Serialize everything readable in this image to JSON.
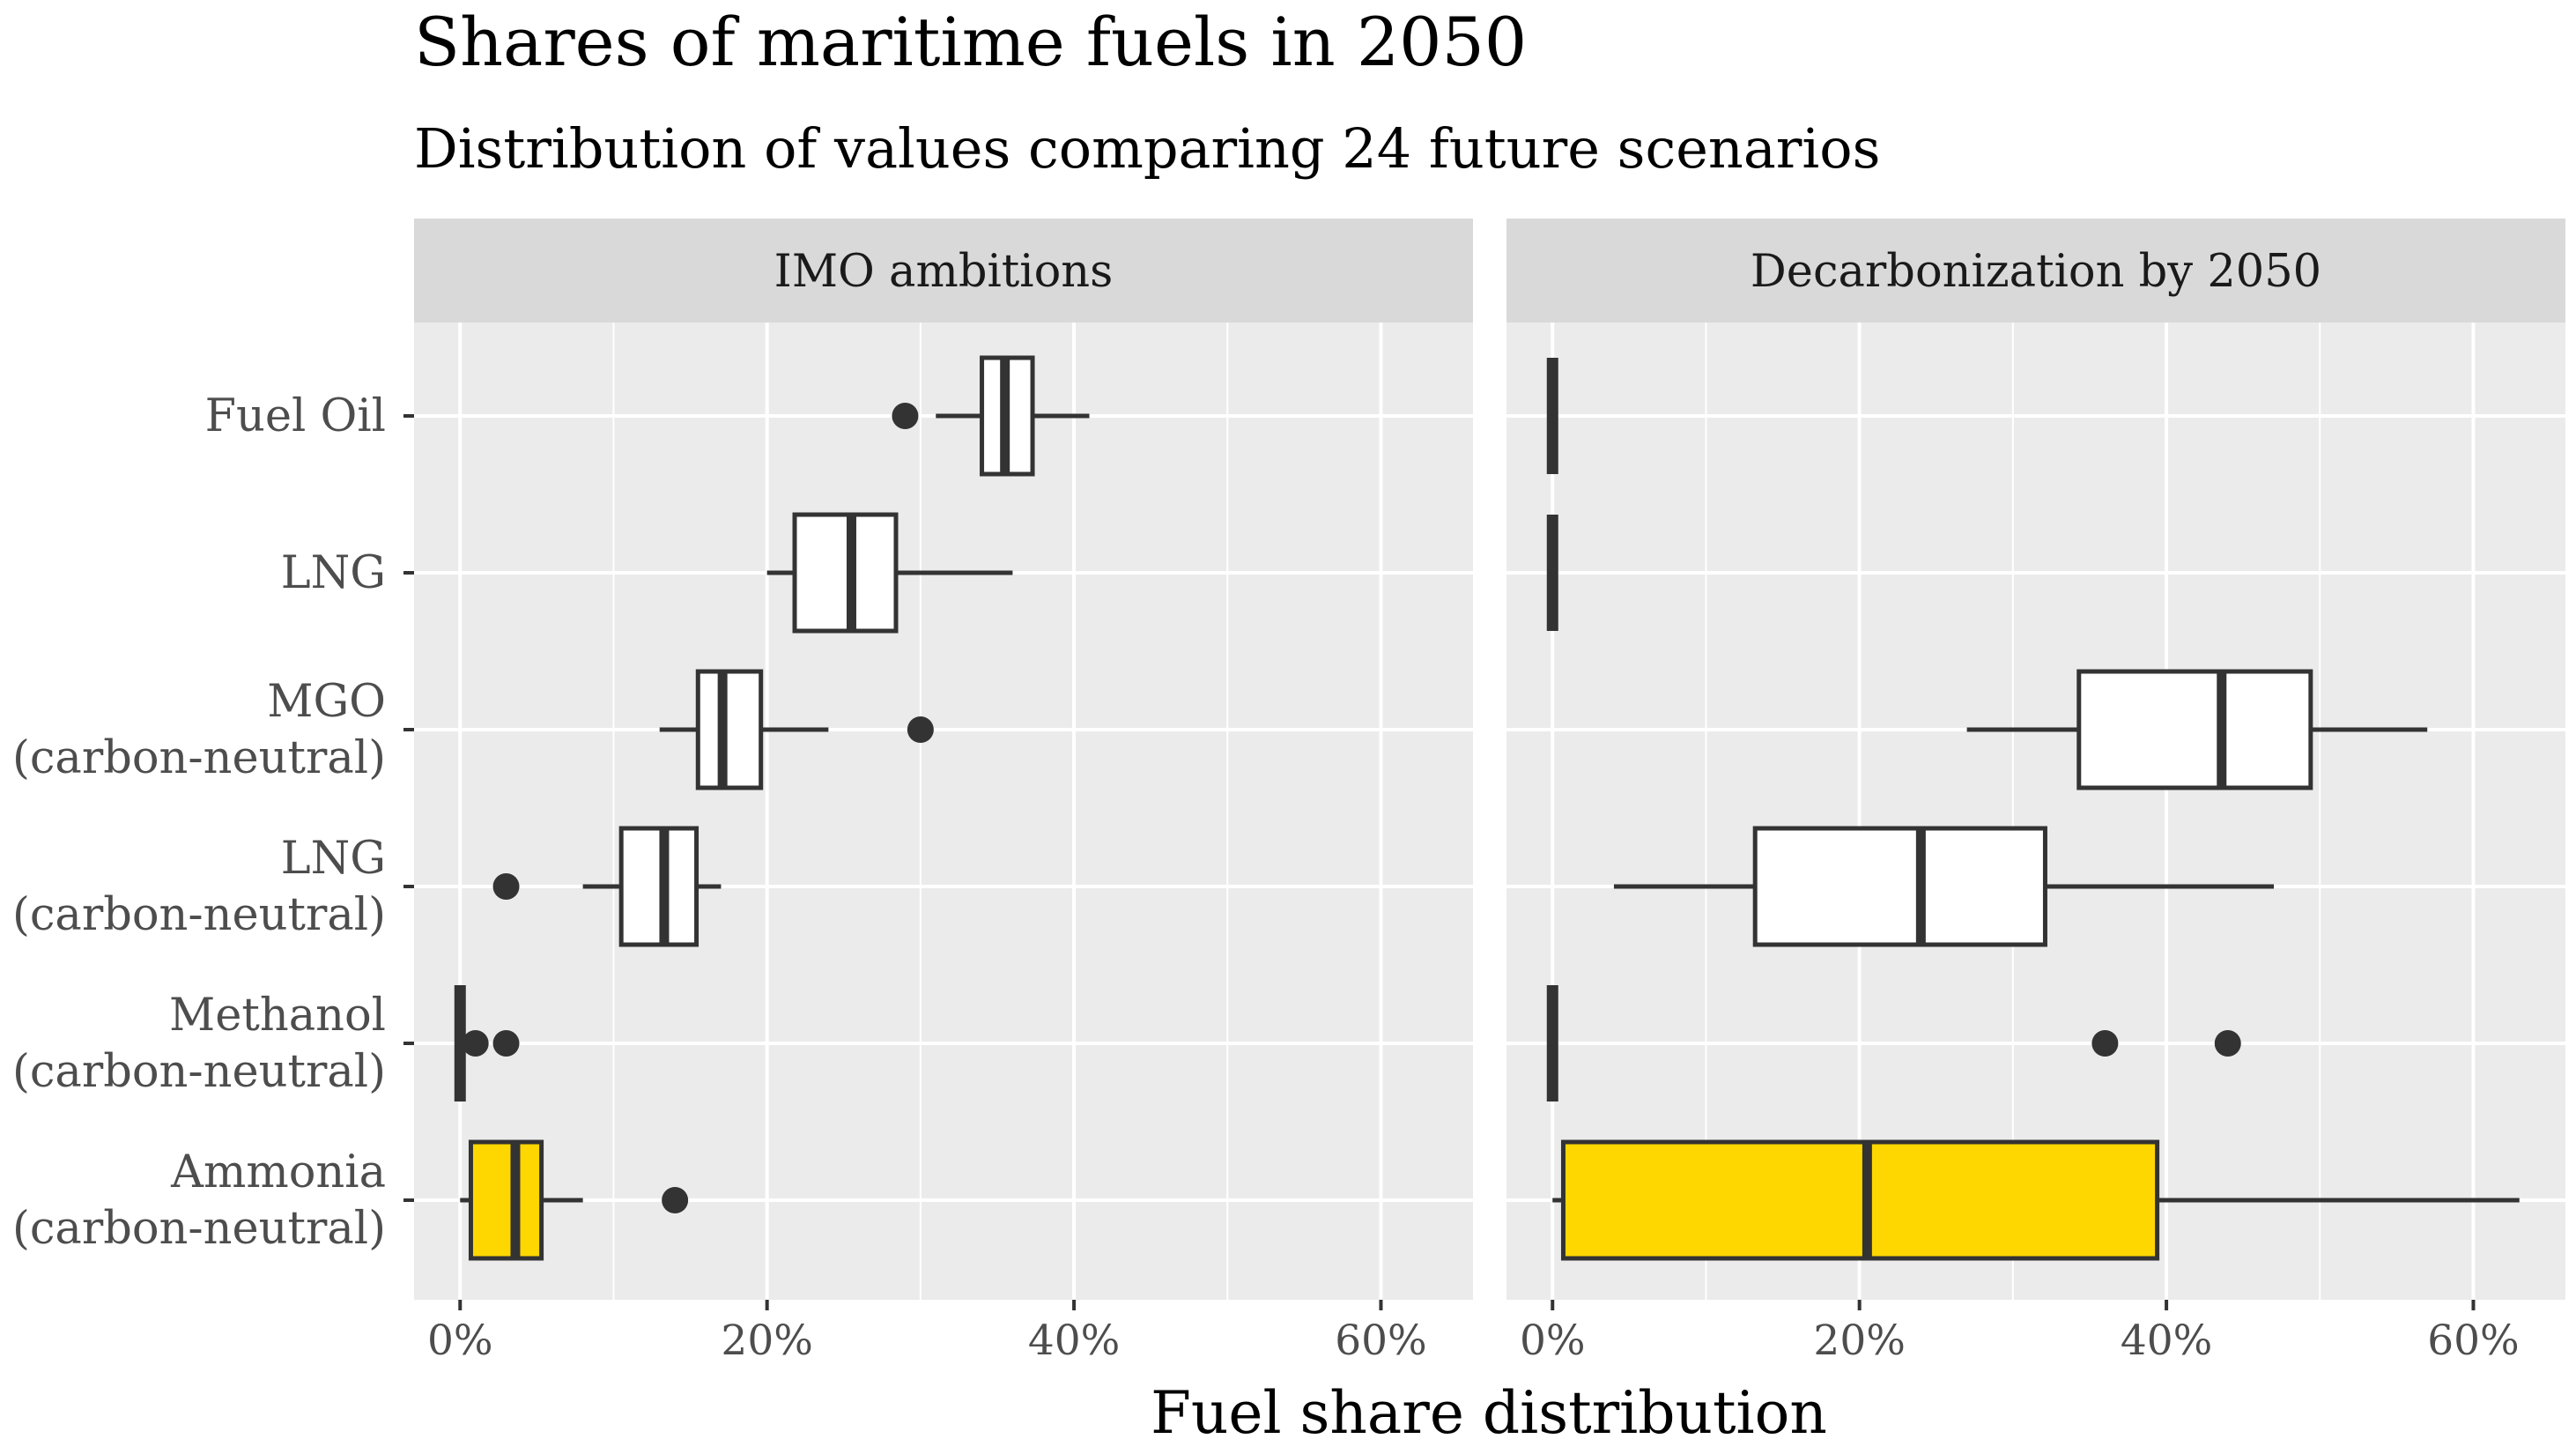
{
  "chart_data": {
    "type": "boxplot",
    "title": "Shares of maritime fuels in 2050",
    "subtitle": "Distribution of values comparing 24 future scenarios",
    "xlabel": "Fuel share distribution",
    "ylabel": "",
    "xlim": [
      -0.03,
      0.66
    ],
    "x_ticks": [
      0,
      0.2,
      0.4,
      0.6
    ],
    "x_tick_labels": [
      "0%",
      "20%",
      "40%",
      "60%"
    ],
    "categories": [
      "Fuel Oil",
      "LNG",
      "MGO\n(carbon-neutral)",
      "LNG\n(carbon-neutral)",
      "Methanol\n(carbon-neutral)",
      "Ammonia\n(carbon-neutral)"
    ],
    "colors": {
      "panel_bg": "#ebebeb",
      "grid": "#ffffff",
      "strip_bg": "#d9d9d9",
      "box_default": "#ffffff",
      "box_highlight": "#ffd700",
      "line": "#333333"
    },
    "highlight_category": "Ammonia\n(carbon-neutral)",
    "panels": [
      {
        "name": "IMO ambitions",
        "boxes": [
          {
            "category": "Fuel Oil",
            "min": 0.31,
            "q1": 0.34,
            "median": 0.355,
            "q3": 0.373,
            "max": 0.41,
            "outliers": [
              0.29
            ]
          },
          {
            "category": "LNG",
            "min": 0.2,
            "q1": 0.218,
            "median": 0.255,
            "q3": 0.284,
            "max": 0.36,
            "outliers": []
          },
          {
            "category": "MGO\n(carbon-neutral)",
            "min": 0.13,
            "q1": 0.155,
            "median": 0.171,
            "q3": 0.196,
            "max": 0.24,
            "outliers": [
              0.3
            ]
          },
          {
            "category": "LNG\n(carbon-neutral)",
            "min": 0.08,
            "q1": 0.105,
            "median": 0.133,
            "q3": 0.154,
            "max": 0.17,
            "outliers": [
              0.03
            ]
          },
          {
            "category": "Methanol\n(carbon-neutral)",
            "min": 0.0,
            "q1": 0.0,
            "median": 0.0,
            "q3": 0.0,
            "max": 0.0,
            "outliers": [
              0.01,
              0.03
            ]
          },
          {
            "category": "Ammonia\n(carbon-neutral)",
            "min": 0.0,
            "q1": 0.007,
            "median": 0.036,
            "q3": 0.053,
            "max": 0.08,
            "outliers": [
              0.14
            ]
          }
        ]
      },
      {
        "name": "Decarbonization by 2050",
        "boxes": [
          {
            "category": "Fuel Oil",
            "min": 0.0,
            "q1": 0.0,
            "median": 0.0,
            "q3": 0.0,
            "max": 0.0,
            "outliers": []
          },
          {
            "category": "LNG",
            "min": 0.0,
            "q1": 0.0,
            "median": 0.0,
            "q3": 0.0,
            "max": 0.0,
            "outliers": []
          },
          {
            "category": "MGO\n(carbon-neutral)",
            "min": 0.27,
            "q1": 0.343,
            "median": 0.436,
            "q3": 0.494,
            "max": 0.57,
            "outliers": []
          },
          {
            "category": "LNG\n(carbon-neutral)",
            "min": 0.04,
            "q1": 0.132,
            "median": 0.24,
            "q3": 0.321,
            "max": 0.47,
            "outliers": []
          },
          {
            "category": "Methanol\n(carbon-neutral)",
            "min": 0.0,
            "q1": 0.0,
            "median": 0.0,
            "q3": 0.0,
            "max": 0.0,
            "outliers": [
              0.36,
              0.44
            ]
          },
          {
            "category": "Ammonia\n(carbon-neutral)",
            "min": 0.0,
            "q1": 0.007,
            "median": 0.205,
            "q3": 0.394,
            "max": 0.63,
            "outliers": []
          }
        ]
      }
    ]
  }
}
